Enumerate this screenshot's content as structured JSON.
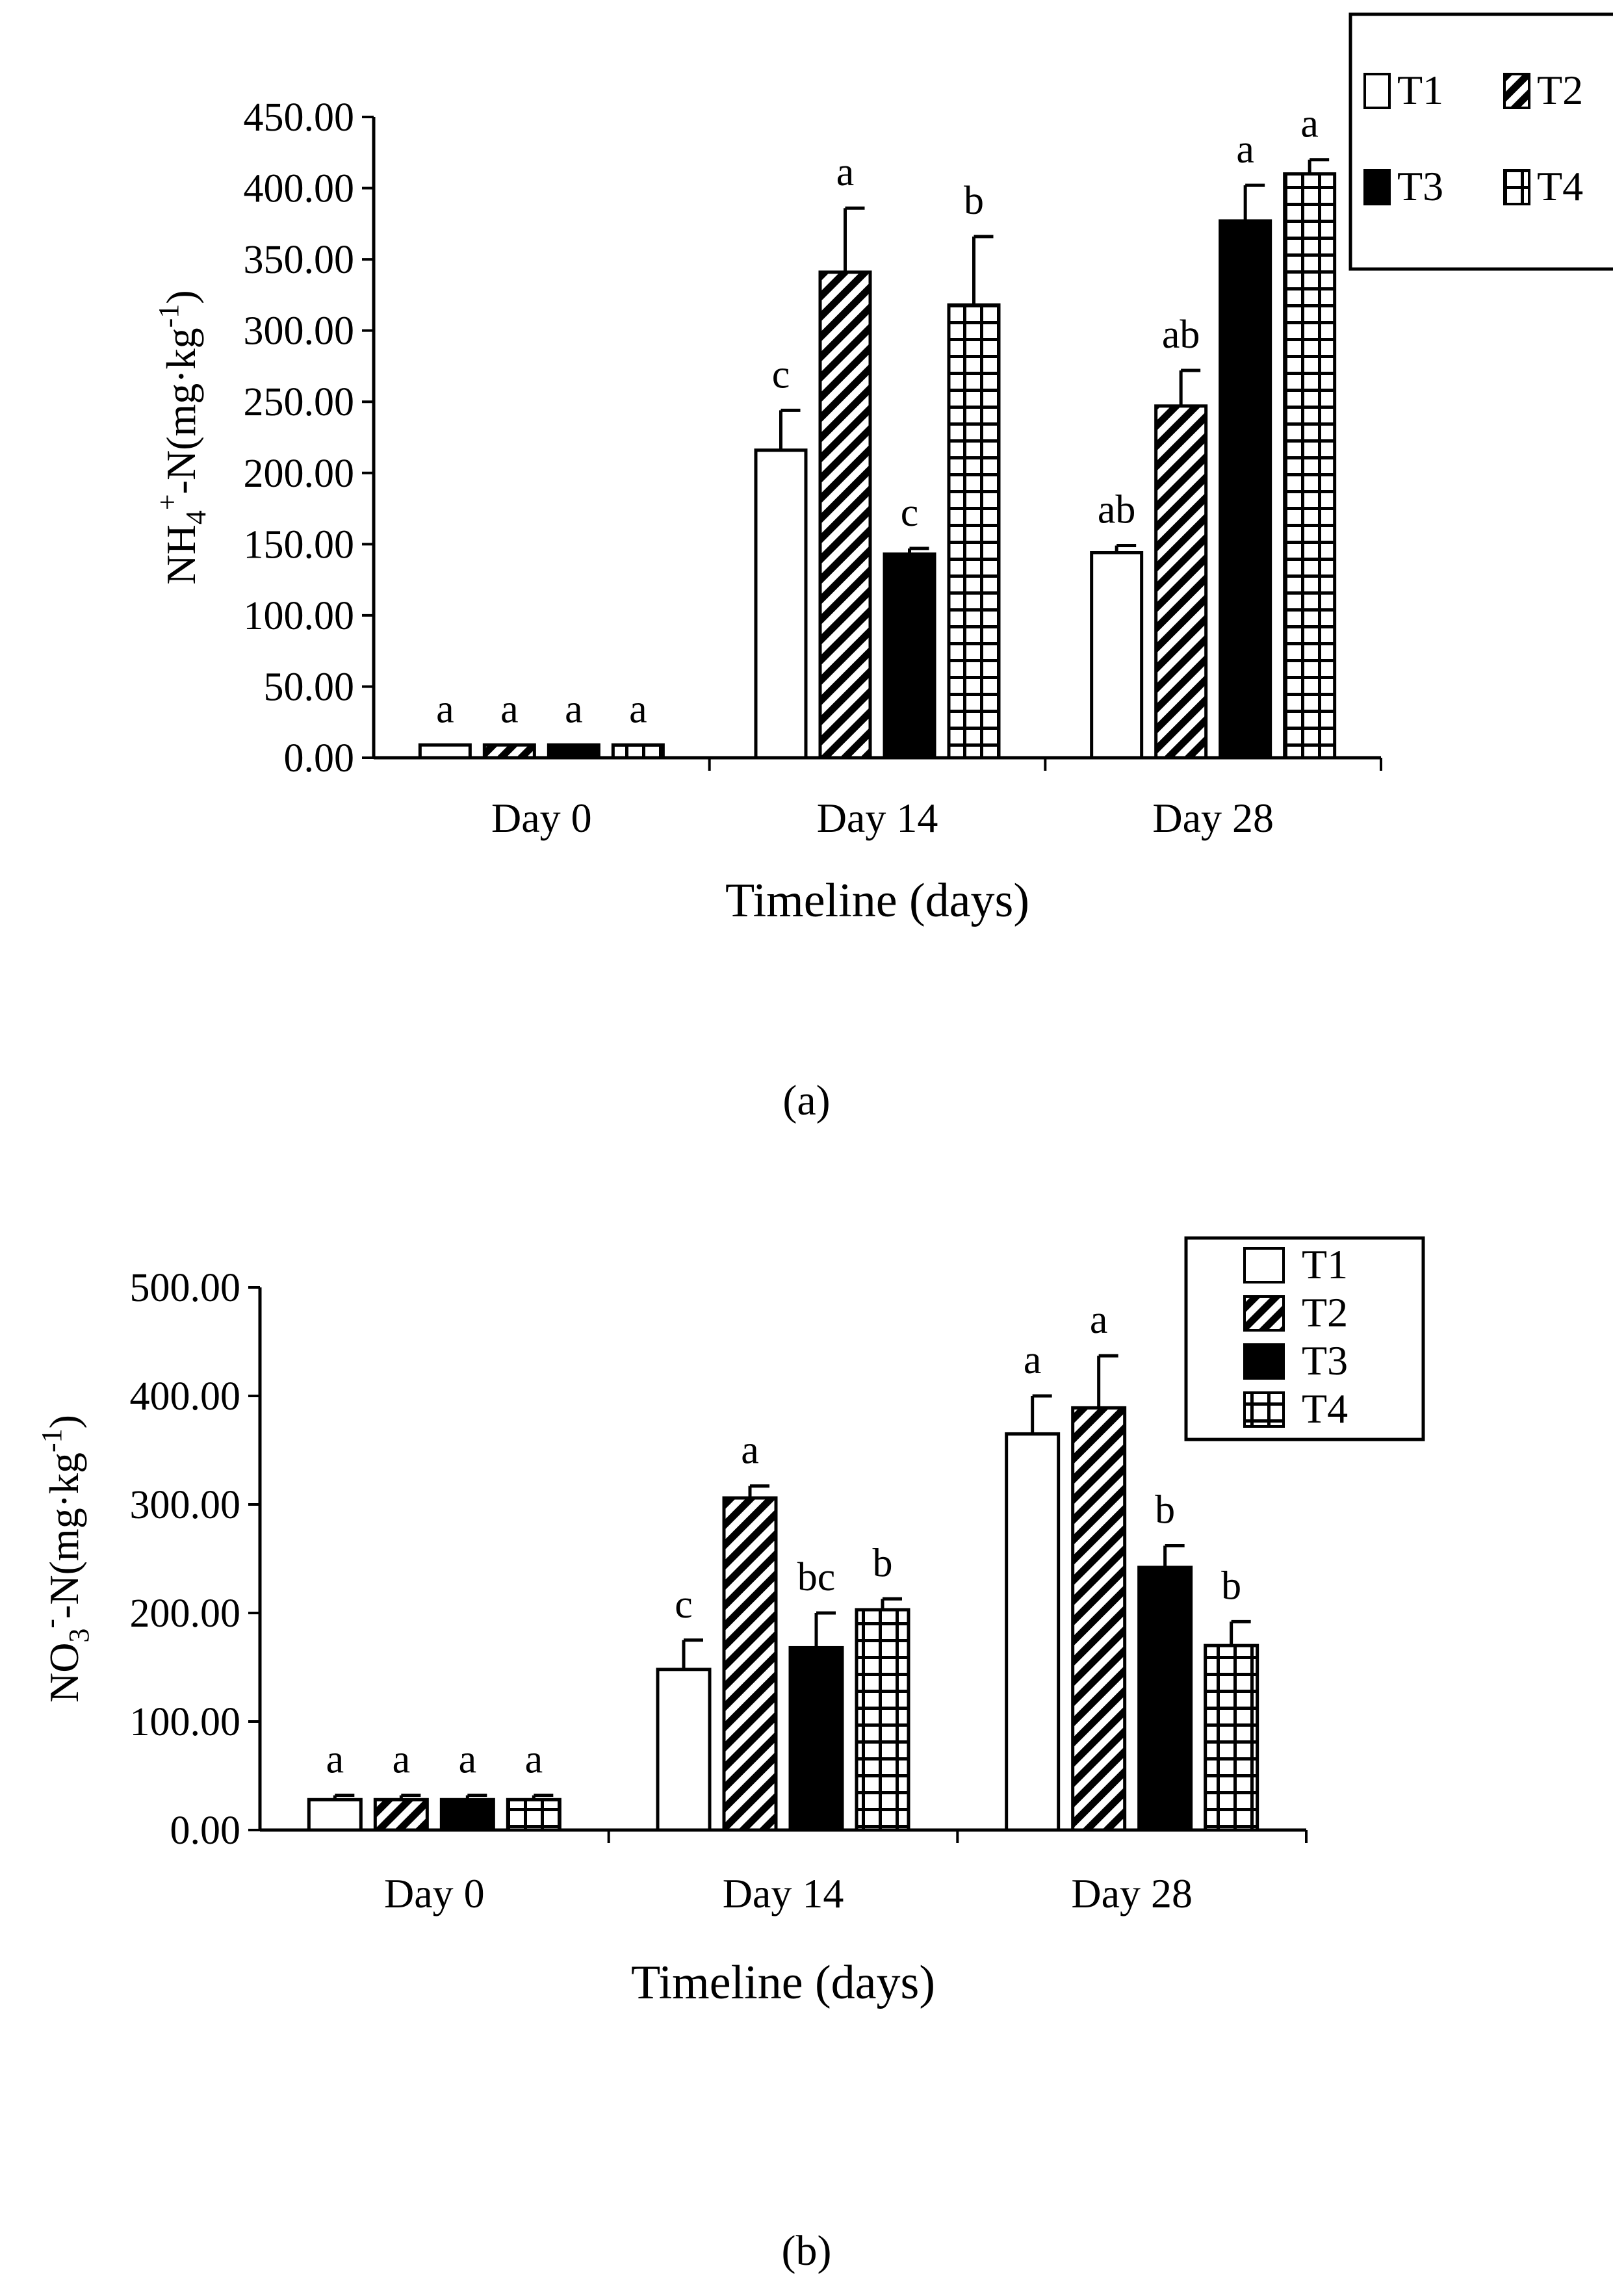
{
  "colors": {
    "ink": "#000000",
    "paper": "#ffffff"
  },
  "chart_data": [
    {
      "type": "bar",
      "panel_label": "(a)",
      "xlabel": "Timeline (days)",
      "ylabel_parts": {
        "main": "NH",
        "sub": "4",
        "sup": "+",
        "rest": "-N(mg·kg",
        "unit_sup": "-1",
        "close": ")"
      },
      "ylim": [
        0,
        450
      ],
      "yticks": [
        "0.00",
        "50.00",
        "100.00",
        "150.00",
        "200.00",
        "250.00",
        "300.00",
        "350.00",
        "400.00",
        "450.00"
      ],
      "categories": [
        "Day 0",
        "Day 14",
        "Day 28"
      ],
      "legend": {
        "style": "grid",
        "items": [
          "T1",
          "T2",
          "T3",
          "T4"
        ]
      },
      "series": [
        {
          "name": "T1",
          "pattern": "white",
          "values": [
            9,
            216,
            144
          ],
          "errors": [
            0,
            28,
            5
          ],
          "labels": [
            "a",
            "c",
            "ab"
          ]
        },
        {
          "name": "T2",
          "pattern": "hatch",
          "values": [
            9,
            341,
            247
          ],
          "errors": [
            0,
            45,
            25
          ],
          "labels": [
            "a",
            "a",
            "ab"
          ]
        },
        {
          "name": "T3",
          "pattern": "black",
          "values": [
            9,
            143,
            377
          ],
          "errors": [
            0,
            4,
            25
          ],
          "labels": [
            "a",
            "c",
            "a"
          ]
        },
        {
          "name": "T4",
          "pattern": "grid",
          "values": [
            9,
            318,
            410
          ],
          "errors": [
            0,
            48,
            10
          ],
          "labels": [
            "a",
            "b",
            "a"
          ]
        }
      ]
    },
    {
      "type": "bar",
      "panel_label": "(b)",
      "xlabel": "Timeline (days)",
      "ylabel_parts": {
        "main": "NO",
        "sub": "3",
        "sup": "-",
        "rest": "-N(mg·kg",
        "unit_sup": "-1",
        "close": ")"
      },
      "ylim": [
        0,
        500
      ],
      "yticks": [
        "0.00",
        "100.00",
        "200.00",
        "300.00",
        "400.00",
        "500.00"
      ],
      "categories": [
        "Day 0",
        "Day 14",
        "Day 28"
      ],
      "legend": {
        "style": "list",
        "items": [
          "T1",
          "T2",
          "T3",
          "T4"
        ]
      },
      "series": [
        {
          "name": "T1",
          "pattern": "white",
          "values": [
            28,
            148,
            365
          ],
          "errors": [
            4,
            27,
            35
          ],
          "labels": [
            "a",
            "c",
            "a"
          ]
        },
        {
          "name": "T2",
          "pattern": "hatch",
          "values": [
            28,
            306,
            389
          ],
          "errors": [
            4,
            11,
            48
          ],
          "labels": [
            "a",
            "a",
            "a"
          ]
        },
        {
          "name": "T3",
          "pattern": "black",
          "values": [
            28,
            168,
            242
          ],
          "errors": [
            4,
            32,
            20
          ],
          "labels": [
            "a",
            "bc",
            "b"
          ]
        },
        {
          "name": "T4",
          "pattern": "grid",
          "values": [
            28,
            203,
            170
          ],
          "errors": [
            4,
            10,
            22
          ],
          "labels": [
            "a",
            "b",
            "b"
          ]
        }
      ]
    }
  ]
}
